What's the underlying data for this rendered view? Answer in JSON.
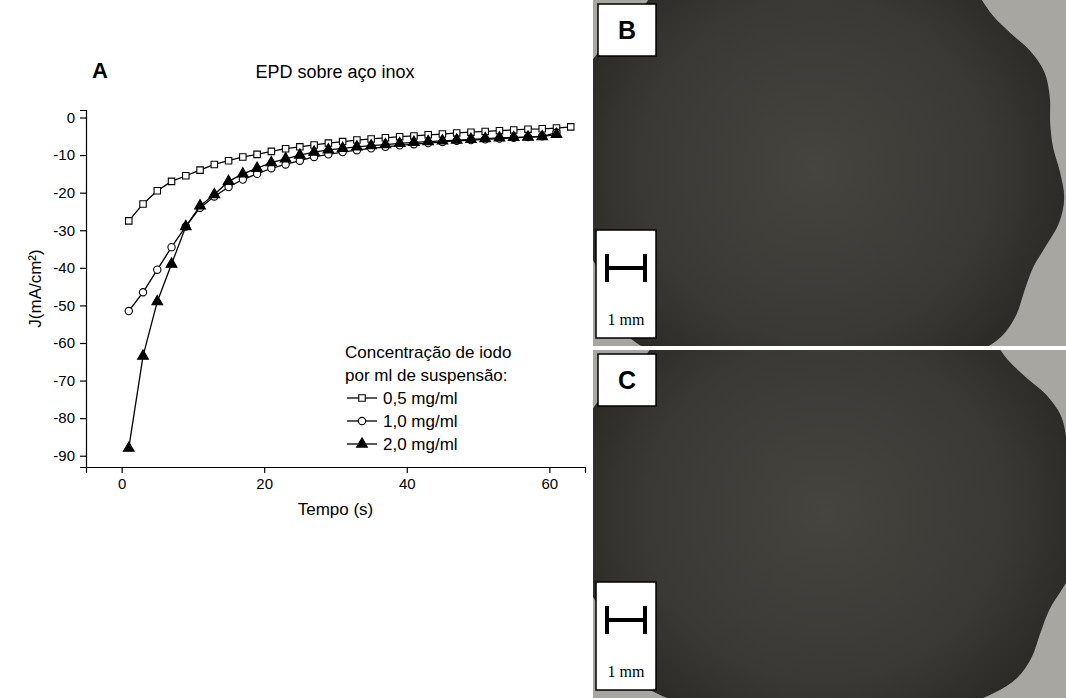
{
  "chart_data": {
    "type": "line",
    "panel_label": "A",
    "title": "EPD sobre aço inox",
    "x_label": "Tempo (s)",
    "y_label": "J(mA/cm²)",
    "x": [
      1,
      3,
      5,
      7,
      9,
      11,
      13,
      15,
      17,
      19,
      21,
      23,
      25,
      27,
      29,
      31,
      33,
      35,
      37,
      39,
      41,
      43,
      45,
      47,
      49,
      51,
      53,
      55,
      57,
      59,
      61,
      63
    ],
    "series": [
      {
        "name": "0,5 mg/ml",
        "color": "#000000",
        "marker": "square-open",
        "values": [
          -27.5,
          -23,
          -19.5,
          -17,
          -15.5,
          -14,
          -12.5,
          -11.5,
          -10.5,
          -9.8,
          -9,
          -8.3,
          -7.8,
          -7.3,
          -6.8,
          -6.4,
          -6,
          -5.7,
          -5.4,
          -5.1,
          -4.9,
          -4.6,
          -4.4,
          -4.1,
          -3.9,
          -3.7,
          -3.5,
          -3.3,
          -3.1,
          -3,
          -2.8,
          -2.5
        ]
      },
      {
        "name": "1,0 mg/ml",
        "color": "#000000",
        "marker": "circle-open",
        "values": [
          -51.5,
          -46.5,
          -40.5,
          -34.5,
          -29,
          -24,
          -21,
          -18.5,
          -16.5,
          -15,
          -13.5,
          -12.5,
          -11.5,
          -10.5,
          -9.8,
          -9.2,
          -8.7,
          -8.2,
          -7.8,
          -7.4,
          -7.1,
          -6.8,
          -6.5,
          -6.2,
          -6,
          -5.8,
          -5.6,
          -5.4,
          -5.2,
          -5,
          -4,
          null
        ]
      },
      {
        "name": "2,0 mg/ml",
        "color": "#000000",
        "marker": "triangle",
        "values": [
          -88,
          -63.5,
          -49,
          -39,
          -29,
          -23.5,
          -20.5,
          -17,
          -15,
          -13.5,
          -12,
          -11,
          -10,
          -9.2,
          -8.6,
          -8.2,
          -7.8,
          -7.5,
          -7.2,
          -6.9,
          -6.6,
          -6.4,
          -6.2,
          -6,
          -5.8,
          -5.6,
          -5.4,
          -5.3,
          -5.2,
          -5.1,
          -4.5,
          null
        ]
      }
    ],
    "legend_title": [
      "Concentração de iodo",
      "por ml de suspensão:"
    ],
    "legend": "lower right",
    "xlim": [
      -5,
      65
    ],
    "xticks": [
      0,
      20,
      40,
      60
    ],
    "ylim": [
      -93,
      2
    ],
    "yticks": [
      0,
      -10,
      -20,
      -30,
      -40,
      -50,
      -60,
      -70,
      -80,
      -90
    ],
    "grid": false
  },
  "photos": [
    {
      "label": "B",
      "scale_bar": "1 mm"
    },
    {
      "label": "C",
      "scale_bar": "1 mm"
    }
  ]
}
